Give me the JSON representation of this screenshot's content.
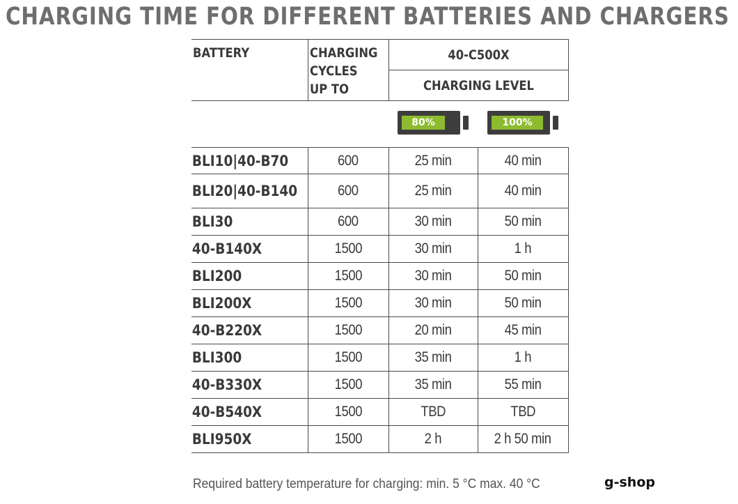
{
  "title": "CHARGING TIME FOR DIFFERENT BATTERIES AND CHARGERS",
  "header": {
    "battery": "BATTERY",
    "cycles_line1": "CHARGING",
    "cycles_line2": "CYCLES",
    "cycles_line3": "UP TO",
    "charger_model": "40-C500X",
    "charging_level": "CHARGING LEVEL"
  },
  "levels": [
    {
      "label": "80%",
      "fill_fraction": 0.8
    },
    {
      "label": "100%",
      "fill_fraction": 1.0
    }
  ],
  "colors": {
    "battery_fill": "#8dbb2f",
    "battery_body": "#3d3d3d"
  },
  "rows": [
    {
      "battery": "BLI10|40-B70",
      "cycles": "600",
      "level80": "25 min",
      "level100": "40 min"
    },
    {
      "battery": "BLI20|40-B140",
      "cycles": "600",
      "level80": "25 min",
      "level100": "40 min"
    },
    {
      "battery": "BLI30",
      "cycles": "600",
      "level80": "30 min",
      "level100": "50 min"
    },
    {
      "battery": "40-B140X",
      "cycles": "1500",
      "level80": "30 min",
      "level100": "1 h"
    },
    {
      "battery": "BLI200",
      "cycles": "1500",
      "level80": "30 min",
      "level100": "50 min"
    },
    {
      "battery": "BLI200X",
      "cycles": "1500",
      "level80": "30 min",
      "level100": "50 min"
    },
    {
      "battery": "40-B220X",
      "cycles": "1500",
      "level80": "20 min",
      "level100": "45 min"
    },
    {
      "battery": "BLI300",
      "cycles": "1500",
      "level80": "35 min",
      "level100": "1 h"
    },
    {
      "battery": "40-B330X",
      "cycles": "1500",
      "level80": "35 min",
      "level100": "55 min"
    },
    {
      "battery": "40-B540X",
      "cycles": "1500",
      "level80": "TBD",
      "level100": "TBD"
    },
    {
      "battery": "BLI950X",
      "cycles": "1500",
      "level80": "2 h",
      "level100": "2 h 50 min"
    }
  ],
  "note": "Required battery temperature for charging: min. 5 °C max. 40 °C",
  "brand": "g-shop"
}
